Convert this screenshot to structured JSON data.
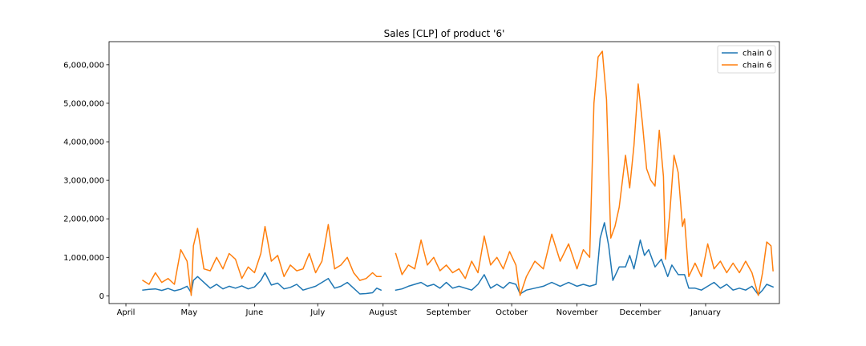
{
  "chart_data": {
    "type": "line",
    "title": "Sales [CLP] of product '6'",
    "xlabel": "",
    "ylabel": "",
    "x_ticks": [
      "April",
      "May",
      "June",
      "July",
      "August",
      "September",
      "October",
      "November",
      "December",
      "January"
    ],
    "ylim": [
      -200000,
      6600000
    ],
    "y_ticks": [
      0,
      1000000,
      2000000,
      3000000,
      4000000,
      5000000,
      6000000
    ],
    "y_tick_labels": [
      "0",
      "1,000,000",
      "2,000,000",
      "3,000,000",
      "4,000,000",
      "5,000,000",
      "6,000,000"
    ],
    "grid": false,
    "legend_position": "upper right",
    "series": [
      {
        "name": "chain 0",
        "color": "#1f77b4",
        "points": [
          [
            "2022-04-09",
            150000
          ],
          [
            "2022-04-12",
            170000
          ],
          [
            "2022-04-15",
            180000
          ],
          [
            "2022-04-18",
            140000
          ],
          [
            "2022-04-21",
            190000
          ],
          [
            "2022-04-24",
            130000
          ],
          [
            "2022-04-27",
            170000
          ],
          [
            "2022-04-30",
            250000
          ],
          [
            "2022-05-02",
            80000
          ],
          [
            "2022-05-03",
            400000
          ],
          [
            "2022-05-05",
            500000
          ],
          [
            "2022-05-08",
            350000
          ],
          [
            "2022-05-11",
            200000
          ],
          [
            "2022-05-14",
            300000
          ],
          [
            "2022-05-17",
            180000
          ],
          [
            "2022-05-20",
            250000
          ],
          [
            "2022-05-23",
            200000
          ],
          [
            "2022-05-26",
            260000
          ],
          [
            "2022-05-29",
            180000
          ],
          [
            "2022-06-01",
            230000
          ],
          [
            "2022-06-04",
            400000
          ],
          [
            "2022-06-06",
            600000
          ],
          [
            "2022-06-09",
            280000
          ],
          [
            "2022-06-12",
            330000
          ],
          [
            "2022-06-15",
            180000
          ],
          [
            "2022-06-18",
            220000
          ],
          [
            "2022-06-21",
            300000
          ],
          [
            "2022-06-24",
            150000
          ],
          [
            "2022-06-27",
            200000
          ],
          [
            "2022-06-30",
            250000
          ],
          [
            "2022-07-03",
            350000
          ],
          [
            "2022-07-06",
            450000
          ],
          [
            "2022-07-09",
            200000
          ],
          [
            "2022-07-12",
            250000
          ],
          [
            "2022-07-15",
            350000
          ],
          [
            "2022-07-18",
            200000
          ],
          [
            "2022-07-21",
            50000
          ],
          [
            "2022-07-24",
            60000
          ],
          [
            "2022-07-27",
            80000
          ],
          [
            "2022-07-29",
            200000
          ],
          [
            "2022-07-31",
            150000
          ],
          [
            "2022-08-07",
            150000
          ],
          [
            "2022-08-10",
            180000
          ],
          [
            "2022-08-13",
            250000
          ],
          [
            "2022-08-16",
            300000
          ],
          [
            "2022-08-19",
            350000
          ],
          [
            "2022-08-22",
            250000
          ],
          [
            "2022-08-25",
            300000
          ],
          [
            "2022-08-28",
            200000
          ],
          [
            "2022-08-31",
            350000
          ],
          [
            "2022-09-03",
            200000
          ],
          [
            "2022-09-06",
            250000
          ],
          [
            "2022-09-09",
            200000
          ],
          [
            "2022-09-12",
            150000
          ],
          [
            "2022-09-15",
            300000
          ],
          [
            "2022-09-18",
            550000
          ],
          [
            "2022-09-21",
            200000
          ],
          [
            "2022-09-24",
            300000
          ],
          [
            "2022-09-27",
            200000
          ],
          [
            "2022-09-30",
            350000
          ],
          [
            "2022-10-03",
            300000
          ],
          [
            "2022-10-05",
            50000
          ],
          [
            "2022-10-08",
            150000
          ],
          [
            "2022-10-12",
            200000
          ],
          [
            "2022-10-16",
            250000
          ],
          [
            "2022-10-20",
            350000
          ],
          [
            "2022-10-24",
            250000
          ],
          [
            "2022-10-28",
            350000
          ],
          [
            "2022-11-01",
            250000
          ],
          [
            "2022-11-04",
            300000
          ],
          [
            "2022-11-07",
            250000
          ],
          [
            "2022-11-10",
            300000
          ],
          [
            "2022-11-12",
            1500000
          ],
          [
            "2022-11-14",
            1900000
          ],
          [
            "2022-11-16",
            1300000
          ],
          [
            "2022-11-18",
            400000
          ],
          [
            "2022-11-21",
            750000
          ],
          [
            "2022-11-24",
            750000
          ],
          [
            "2022-11-26",
            1050000
          ],
          [
            "2022-11-28",
            700000
          ],
          [
            "2022-12-01",
            1450000
          ],
          [
            "2022-12-03",
            1050000
          ],
          [
            "2022-12-05",
            1200000
          ],
          [
            "2022-12-08",
            750000
          ],
          [
            "2022-12-11",
            950000
          ],
          [
            "2022-12-14",
            500000
          ],
          [
            "2022-12-16",
            800000
          ],
          [
            "2022-12-19",
            550000
          ],
          [
            "2022-12-22",
            550000
          ],
          [
            "2022-12-24",
            200000
          ],
          [
            "2022-12-27",
            200000
          ],
          [
            "2022-12-30",
            150000
          ],
          [
            "2023-01-02",
            250000
          ],
          [
            "2023-01-05",
            350000
          ],
          [
            "2023-01-08",
            200000
          ],
          [
            "2023-01-11",
            300000
          ],
          [
            "2023-01-14",
            150000
          ],
          [
            "2023-01-17",
            200000
          ],
          [
            "2023-01-20",
            150000
          ],
          [
            "2023-01-23",
            250000
          ],
          [
            "2023-01-26",
            30000
          ],
          [
            "2023-01-28",
            150000
          ],
          [
            "2023-01-30",
            300000
          ],
          [
            "2023-02-02",
            230000
          ]
        ]
      },
      {
        "name": "chain 6",
        "color": "#ff7f0e",
        "points": [
          [
            "2022-04-09",
            400000
          ],
          [
            "2022-04-12",
            300000
          ],
          [
            "2022-04-15",
            600000
          ],
          [
            "2022-04-18",
            350000
          ],
          [
            "2022-04-21",
            450000
          ],
          [
            "2022-04-24",
            300000
          ],
          [
            "2022-04-27",
            1200000
          ],
          [
            "2022-04-30",
            900000
          ],
          [
            "2022-05-02",
            10000
          ],
          [
            "2022-05-03",
            1300000
          ],
          [
            "2022-05-05",
            1750000
          ],
          [
            "2022-05-08",
            700000
          ],
          [
            "2022-05-11",
            650000
          ],
          [
            "2022-05-14",
            1000000
          ],
          [
            "2022-05-17",
            700000
          ],
          [
            "2022-05-20",
            1100000
          ],
          [
            "2022-05-23",
            950000
          ],
          [
            "2022-05-26",
            450000
          ],
          [
            "2022-05-29",
            750000
          ],
          [
            "2022-06-01",
            600000
          ],
          [
            "2022-06-04",
            1100000
          ],
          [
            "2022-06-06",
            1800000
          ],
          [
            "2022-06-09",
            900000
          ],
          [
            "2022-06-12",
            1050000
          ],
          [
            "2022-06-15",
            500000
          ],
          [
            "2022-06-18",
            800000
          ],
          [
            "2022-06-21",
            650000
          ],
          [
            "2022-06-24",
            700000
          ],
          [
            "2022-06-27",
            1100000
          ],
          [
            "2022-06-30",
            600000
          ],
          [
            "2022-07-03",
            900000
          ],
          [
            "2022-07-06",
            1850000
          ],
          [
            "2022-07-09",
            700000
          ],
          [
            "2022-07-12",
            800000
          ],
          [
            "2022-07-15",
            1000000
          ],
          [
            "2022-07-18",
            600000
          ],
          [
            "2022-07-21",
            400000
          ],
          [
            "2022-07-24",
            450000
          ],
          [
            "2022-07-27",
            600000
          ],
          [
            "2022-07-29",
            500000
          ],
          [
            "2022-07-31",
            500000
          ],
          [
            "2022-08-07",
            1100000
          ],
          [
            "2022-08-10",
            550000
          ],
          [
            "2022-08-13",
            800000
          ],
          [
            "2022-08-16",
            700000
          ],
          [
            "2022-08-19",
            1450000
          ],
          [
            "2022-08-22",
            800000
          ],
          [
            "2022-08-25",
            1000000
          ],
          [
            "2022-08-28",
            650000
          ],
          [
            "2022-08-31",
            800000
          ],
          [
            "2022-09-03",
            600000
          ],
          [
            "2022-09-06",
            700000
          ],
          [
            "2022-09-09",
            450000
          ],
          [
            "2022-09-12",
            900000
          ],
          [
            "2022-09-15",
            600000
          ],
          [
            "2022-09-18",
            1550000
          ],
          [
            "2022-09-21",
            800000
          ],
          [
            "2022-09-24",
            1000000
          ],
          [
            "2022-09-27",
            700000
          ],
          [
            "2022-09-30",
            1150000
          ],
          [
            "2022-10-03",
            800000
          ],
          [
            "2022-10-05",
            10000
          ],
          [
            "2022-10-08",
            500000
          ],
          [
            "2022-10-12",
            900000
          ],
          [
            "2022-10-16",
            700000
          ],
          [
            "2022-10-20",
            1600000
          ],
          [
            "2022-10-24",
            900000
          ],
          [
            "2022-10-28",
            1350000
          ],
          [
            "2022-11-01",
            700000
          ],
          [
            "2022-11-04",
            1200000
          ],
          [
            "2022-11-07",
            1000000
          ],
          [
            "2022-11-09",
            5000000
          ],
          [
            "2022-11-11",
            6200000
          ],
          [
            "2022-11-13",
            6350000
          ],
          [
            "2022-11-15",
            5100000
          ],
          [
            "2022-11-17",
            1500000
          ],
          [
            "2022-11-19",
            1800000
          ],
          [
            "2022-11-21",
            2300000
          ],
          [
            "2022-11-24",
            3650000
          ],
          [
            "2022-11-26",
            2800000
          ],
          [
            "2022-11-28",
            3900000
          ],
          [
            "2022-11-30",
            5500000
          ],
          [
            "2022-12-02",
            4500000
          ],
          [
            "2022-12-04",
            3300000
          ],
          [
            "2022-12-06",
            3000000
          ],
          [
            "2022-12-08",
            2850000
          ],
          [
            "2022-12-10",
            4300000
          ],
          [
            "2022-12-12",
            3100000
          ],
          [
            "2022-12-13",
            950000
          ],
          [
            "2022-12-15",
            2150000
          ],
          [
            "2022-12-17",
            3650000
          ],
          [
            "2022-12-19",
            3200000
          ],
          [
            "2022-12-21",
            1800000
          ],
          [
            "2022-12-22",
            2000000
          ],
          [
            "2022-12-24",
            500000
          ],
          [
            "2022-12-27",
            850000
          ],
          [
            "2022-12-30",
            500000
          ],
          [
            "2023-01-02",
            1350000
          ],
          [
            "2023-01-05",
            700000
          ],
          [
            "2023-01-08",
            900000
          ],
          [
            "2023-01-11",
            600000
          ],
          [
            "2023-01-14",
            850000
          ],
          [
            "2023-01-17",
            600000
          ],
          [
            "2023-01-20",
            900000
          ],
          [
            "2023-01-23",
            600000
          ],
          [
            "2023-01-26",
            10000
          ],
          [
            "2023-01-28",
            600000
          ],
          [
            "2023-01-30",
            1400000
          ],
          [
            "2023-02-01",
            1300000
          ],
          [
            "2023-02-02",
            650000
          ]
        ]
      }
    ]
  }
}
